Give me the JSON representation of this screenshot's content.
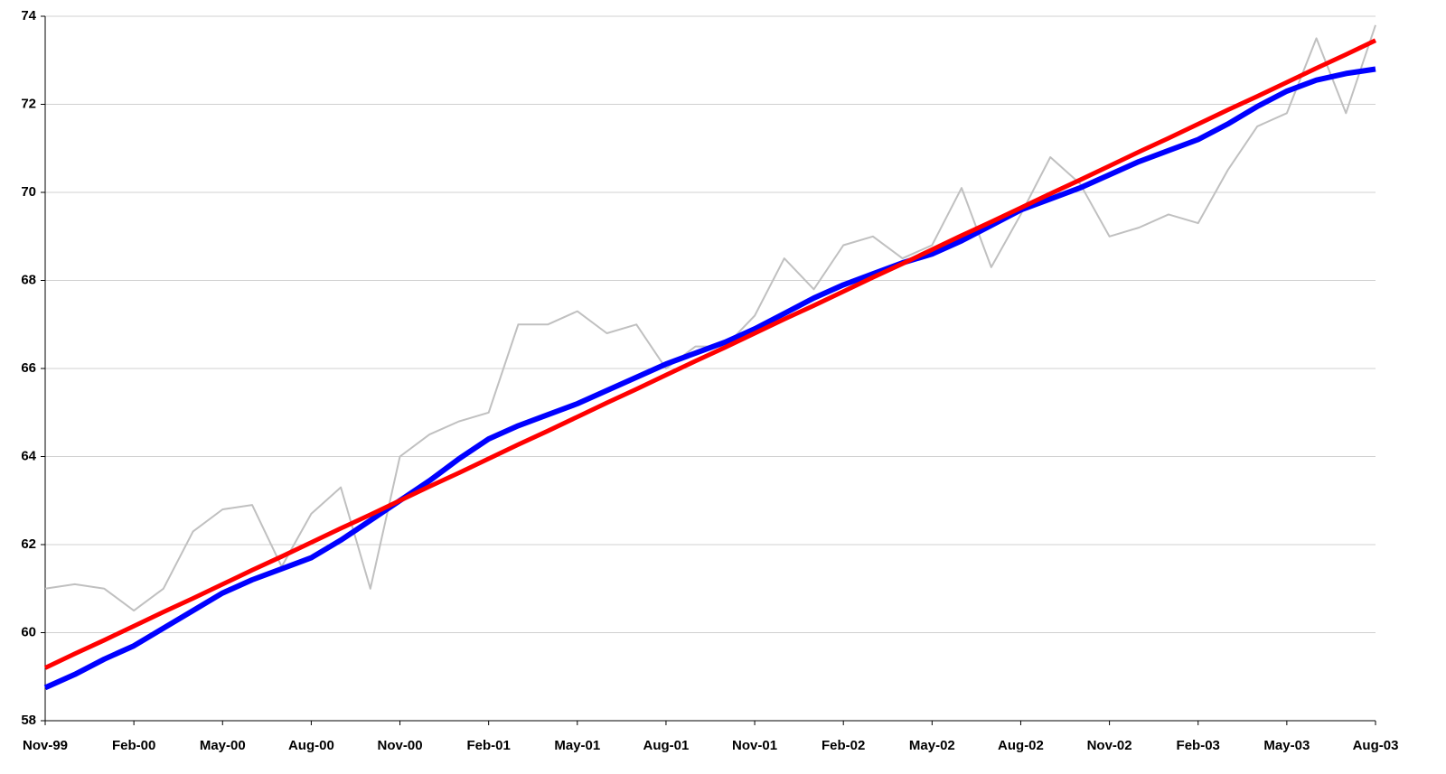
{
  "chart_data": {
    "type": "line",
    "categories": [
      "Nov-99",
      null,
      null,
      "Feb-00",
      null,
      null,
      "May-00",
      null,
      null,
      "Aug-00",
      null,
      null,
      "Nov-00",
      null,
      null,
      "Feb-01",
      null,
      null,
      "May-01",
      null,
      null,
      "Aug-01",
      null,
      null,
      "Nov-01",
      null,
      null,
      "Feb-02",
      null,
      null,
      "May-02",
      null,
      null,
      "Aug-02",
      null,
      null,
      "Nov-02",
      null,
      null,
      "Feb-03",
      null,
      null,
      "May-03",
      null,
      null,
      "Aug-03"
    ],
    "series": [
      {
        "color": "#c0c0c0",
        "values": [
          61.0,
          61.1,
          61.0,
          60.5,
          61.0,
          62.3,
          62.8,
          62.9,
          61.5,
          62.7,
          63.3,
          61.0,
          64.0,
          64.5,
          64.8,
          65.0,
          67.0,
          67.0,
          67.3,
          66.8,
          67.0,
          66.0,
          66.5,
          66.5,
          67.2,
          68.5,
          67.8,
          68.8,
          69.0,
          68.5,
          68.8,
          70.1,
          68.3,
          69.5,
          70.8,
          70.2,
          69.0,
          69.2,
          69.5,
          69.3,
          70.5,
          71.5,
          71.8,
          73.5,
          71.8,
          73.8
        ]
      },
      {
        "color": "#0000ff",
        "values": [
          58.75,
          59.05,
          59.4,
          59.7,
          60.1,
          60.5,
          60.9,
          61.2,
          61.45,
          61.7,
          62.1,
          62.55,
          63.0,
          63.45,
          63.95,
          64.4,
          64.7,
          64.95,
          65.2,
          65.5,
          65.8,
          66.1,
          66.35,
          66.6,
          66.9,
          67.25,
          67.6,
          67.9,
          68.15,
          68.4,
          68.6,
          68.9,
          69.25,
          69.6,
          69.85,
          70.1,
          70.4,
          70.7,
          70.95,
          71.2,
          71.55,
          71.95,
          72.3,
          72.55,
          72.7,
          72.8
        ]
      },
      {
        "color": "#ff0000",
        "values": [
          59.2,
          59.52,
          59.83,
          60.15,
          60.47,
          60.78,
          61.1,
          61.42,
          61.73,
          62.05,
          62.37,
          62.68,
          63.0,
          63.32,
          63.63,
          63.95,
          64.27,
          64.58,
          64.9,
          65.22,
          65.53,
          65.85,
          66.17,
          66.48,
          66.8,
          67.12,
          67.43,
          67.75,
          68.07,
          68.38,
          68.7,
          69.02,
          69.33,
          69.65,
          69.97,
          70.28,
          70.6,
          70.92,
          71.23,
          71.55,
          71.87,
          72.18,
          72.5,
          72.82,
          73.13,
          73.45
        ]
      }
    ],
    "ylim": [
      58,
      74
    ],
    "yticks": [
      58,
      60,
      62,
      64,
      66,
      68,
      70,
      72,
      74
    ],
    "grid": true
  }
}
